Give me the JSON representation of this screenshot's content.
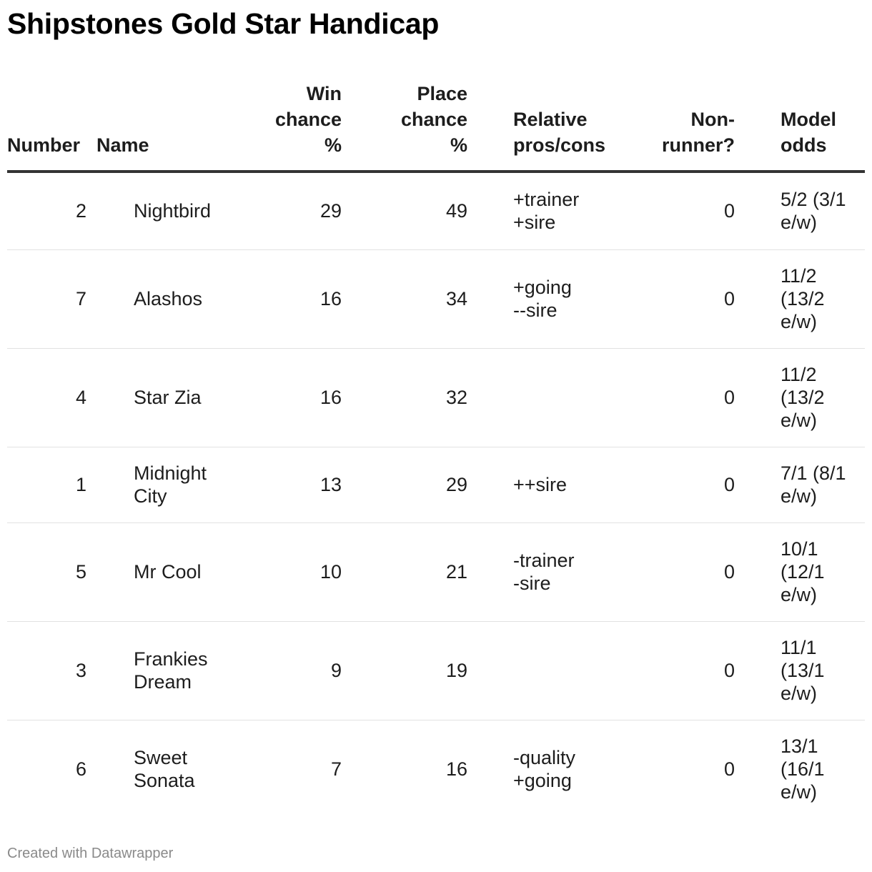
{
  "chart_data": {
    "type": "table",
    "title": "Shipstones Gold Star Handicap",
    "columns": [
      "Number",
      "Name",
      "Win chance %",
      "Place chance %",
      "Relative pros/cons",
      "Non-runner?",
      "Model odds"
    ],
    "rows": [
      {
        "number": "2",
        "name": [
          "Nightbird"
        ],
        "win": "29",
        "place": "49",
        "pros_cons": [
          "+trainer",
          "+sire"
        ],
        "non_runner": "0",
        "odds": [
          "5/2 (3/1",
          "e/w)"
        ]
      },
      {
        "number": "7",
        "name": [
          "Alashos"
        ],
        "win": "16",
        "place": "34",
        "pros_cons": [
          "+going",
          "--sire"
        ],
        "non_runner": "0",
        "odds": [
          "11/2",
          "(13/2",
          "e/w)"
        ]
      },
      {
        "number": "4",
        "name": [
          "Star Zia"
        ],
        "win": "16",
        "place": "32",
        "pros_cons": [],
        "non_runner": "0",
        "odds": [
          "11/2",
          "(13/2",
          "e/w)"
        ]
      },
      {
        "number": "1",
        "name": [
          "Midnight",
          "City"
        ],
        "win": "13",
        "place": "29",
        "pros_cons": [
          "++sire"
        ],
        "non_runner": "0",
        "odds": [
          "7/1 (8/1",
          "e/w)"
        ]
      },
      {
        "number": "5",
        "name": [
          "Mr Cool"
        ],
        "win": "10",
        "place": "21",
        "pros_cons": [
          "-trainer",
          "-sire"
        ],
        "non_runner": "0",
        "odds": [
          "10/1",
          "(12/1",
          "e/w)"
        ]
      },
      {
        "number": "3",
        "name": [
          "Frankies",
          "Dream"
        ],
        "win": "9",
        "place": "19",
        "pros_cons": [],
        "non_runner": "0",
        "odds": [
          "11/1",
          "(13/1",
          "e/w)"
        ]
      },
      {
        "number": "6",
        "name": [
          "Sweet",
          "Sonata"
        ],
        "win": "7",
        "place": "16",
        "pros_cons": [
          "-quality",
          "+going"
        ],
        "non_runner": "0",
        "odds": [
          "13/1",
          "(16/1",
          "e/w)"
        ]
      }
    ]
  },
  "header": {
    "number": [
      "Number"
    ],
    "name": [
      "Name"
    ],
    "win": [
      "Win",
      "chance",
      "%"
    ],
    "place": [
      "Place",
      "chance",
      "%"
    ],
    "pros_cons": [
      "Relative",
      "pros/cons"
    ],
    "non_runner": [
      "Non-",
      "runner?"
    ],
    "odds": [
      "Model",
      "odds"
    ]
  },
  "footer": {
    "credit": "Created with Datawrapper"
  },
  "colors": {
    "text": "#1d1d1d",
    "header_rule": "#333333",
    "row_rule": "#e2e2e2",
    "footer_text": "#8a8a8a"
  }
}
